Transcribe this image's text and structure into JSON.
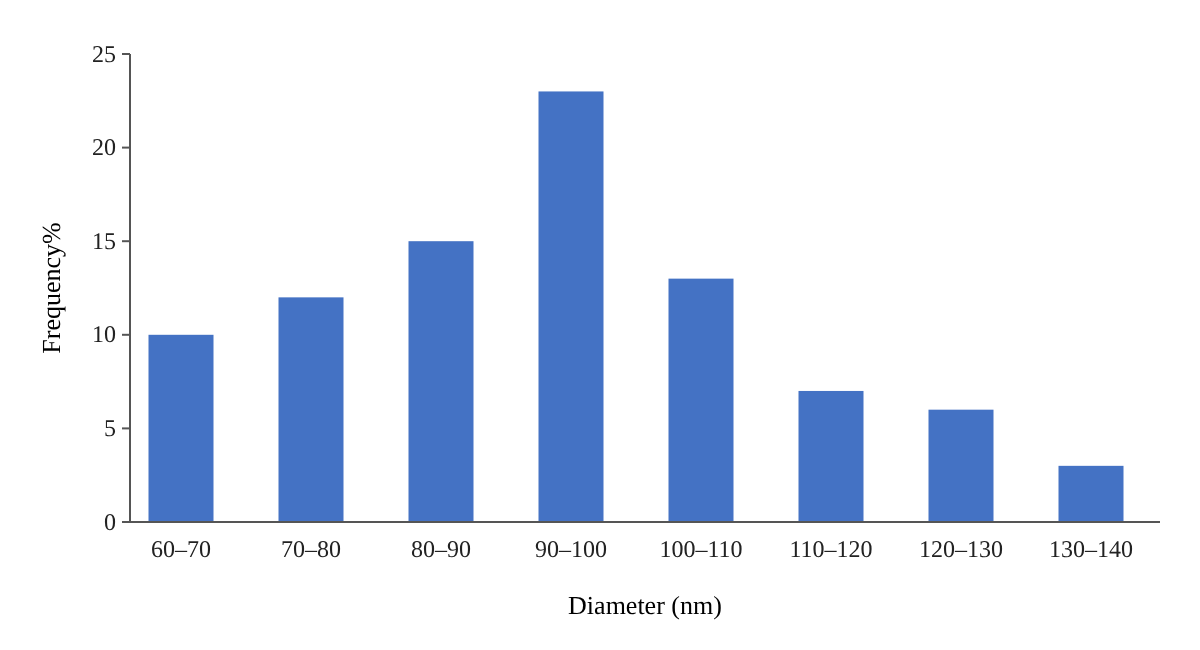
{
  "chart_data": {
    "type": "bar",
    "xlabel": "Diameter (nm)",
    "ylabel": "Frequency%",
    "categories": [
      "60–70",
      "70–80",
      "80–90",
      "90–100",
      "100–110",
      "110–120",
      "120–130",
      "130–140"
    ],
    "values": [
      10,
      12,
      15,
      23,
      13,
      7,
      6,
      3
    ],
    "color": "#4472c4",
    "ylim": [
      0,
      25
    ],
    "yticks": [
      0,
      5,
      10,
      15,
      20,
      25
    ],
    "grid": false
  }
}
